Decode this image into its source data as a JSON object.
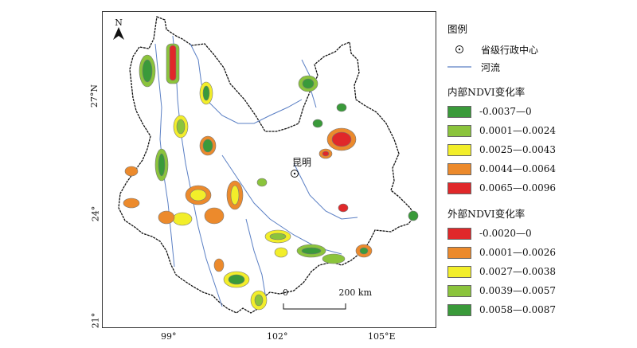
{
  "map": {
    "north_label": "N",
    "capital_label": "昆明",
    "lon_ticks": [
      "99°",
      "102°",
      "105°E"
    ],
    "lat_ticks": [
      "27°N",
      "24°",
      "21°"
    ],
    "scale": {
      "start": "0",
      "end": "200 km"
    }
  },
  "legend": {
    "title": "图例",
    "capital_item": "省级行政中心",
    "river_item": "河流",
    "inner_title": "内部NDVI变化率",
    "inner_items": [
      {
        "label": "-0.0037—0",
        "color": "#3a9a3a"
      },
      {
        "label": "0.0001—0.0024",
        "color": "#8bc43c"
      },
      {
        "label": "0.0025—0.0043",
        "color": "#f2ee2a"
      },
      {
        "label": "0.0044—0.0064",
        "color": "#ec8a2c"
      },
      {
        "label": "0.0065—0.0096",
        "color": "#e0282a"
      }
    ],
    "outer_title": "外部NDVI变化率",
    "outer_items": [
      {
        "label": "-0.0020—0",
        "color": "#e0282a"
      },
      {
        "label": "0.0001—0.0026",
        "color": "#ec8a2c"
      },
      {
        "label": "0.0027—0.0038",
        "color": "#f2ee2a"
      },
      {
        "label": "0.0039—0.0057",
        "color": "#8bc43c"
      },
      {
        "label": "0.0058—0.0087",
        "color": "#3a9a3a"
      }
    ]
  },
  "colors": {
    "river": "#5a7fc4",
    "boundary": "#111111"
  }
}
